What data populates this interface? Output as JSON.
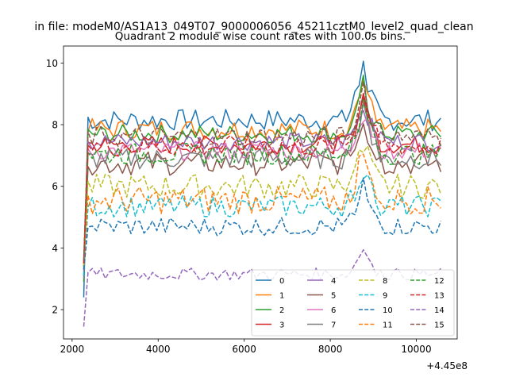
{
  "suptitle": "in file: modeM0/AS1A13_049T07_9000006056_45211cztM0_level2_quad_clean",
  "chart_data": {
    "type": "line",
    "title": "Quadrant 2 module wise count rates with 100.0s bins.",
    "xlabel": "",
    "ylabel": "",
    "x_offset_label": "+4.45e8",
    "xlim": [
      1800,
      10950
    ],
    "ylim": [
      1.05,
      10.55
    ],
    "xticks": [
      2000,
      4000,
      6000,
      8000,
      10000
    ],
    "yticks": [
      2,
      4,
      6,
      8,
      10
    ],
    "x_start": 2270,
    "x_step": 100,
    "legend_position": "lower-right",
    "legend_columns": 4,
    "series": [
      {
        "name": "0",
        "color": "#1f77b4",
        "dashed": false,
        "baseline": 8.15,
        "amplitude": 0.35,
        "start": 2.4,
        "peak": 10.1
      },
      {
        "name": "1",
        "color": "#ff7f0e",
        "dashed": false,
        "baseline": 7.85,
        "amplitude": 0.35,
        "start": 3.5,
        "peak": 9.5
      },
      {
        "name": "2",
        "color": "#2ca02c",
        "dashed": false,
        "baseline": 7.7,
        "amplitude": 0.3,
        "start": 2.9,
        "peak": 9.2
      },
      {
        "name": "3",
        "color": "#d62728",
        "dashed": false,
        "baseline": 7.35,
        "amplitude": 0.3,
        "start": 3.3,
        "peak": 9.0
      },
      {
        "name": "4",
        "color": "#9467bd",
        "dashed": false,
        "baseline": 7.45,
        "amplitude": 0.3,
        "start": 3.4,
        "peak": 8.7
      },
      {
        "name": "5",
        "color": "#8c564b",
        "dashed": false,
        "baseline": 6.75,
        "amplitude": 0.4,
        "start": 3.1,
        "peak": 8.4
      },
      {
        "name": "6",
        "color": "#e377c2",
        "dashed": false,
        "baseline": 7.15,
        "amplitude": 0.3,
        "start": 3.2,
        "peak": 8.5
      },
      {
        "name": "7",
        "color": "#7f7f7f",
        "dashed": false,
        "baseline": 6.9,
        "amplitude": 0.35,
        "start": 3.0,
        "peak": 8.8
      },
      {
        "name": "8",
        "color": "#bcbd22",
        "dashed": true,
        "baseline": 6.0,
        "amplitude": 0.4,
        "start": 3.4,
        "peak": 7.6
      },
      {
        "name": "9",
        "color": "#17becf",
        "dashed": true,
        "baseline": 5.35,
        "amplitude": 0.35,
        "start": 3.1,
        "peak": 6.7
      },
      {
        "name": "10",
        "color": "#1f77b4",
        "dashed": true,
        "baseline": 4.7,
        "amplitude": 0.3,
        "start": 3.3,
        "peak": 6.1
      },
      {
        "name": "11",
        "color": "#ff7f0e",
        "dashed": true,
        "baseline": 5.55,
        "amplitude": 0.45,
        "start": 3.5,
        "peak": 7.3
      },
      {
        "name": "12",
        "color": "#2ca02c",
        "dashed": true,
        "baseline": 7.05,
        "amplitude": 0.35,
        "start": 3.6,
        "peak": 8.7
      },
      {
        "name": "13",
        "color": "#d62728",
        "dashed": true,
        "baseline": 7.3,
        "amplitude": 0.35,
        "start": 3.5,
        "peak": 9.1
      },
      {
        "name": "14",
        "color": "#9467bd",
        "dashed": true,
        "baseline": 3.15,
        "amplitude": 0.2,
        "start": 1.45,
        "peak": 4.1
      },
      {
        "name": "15",
        "color": "#8c564b",
        "dashed": true,
        "baseline": 7.6,
        "amplitude": 0.35,
        "start": 3.6,
        "peak": 9.3
      }
    ]
  }
}
